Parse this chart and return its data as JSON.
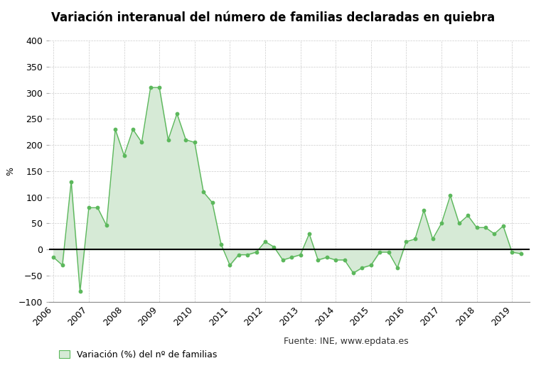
{
  "title": "Variación interanual del número de familias declaradas en quiebra",
  "ylabel": "%",
  "legend_label": "Variación (%) del nº de familias",
  "source_text": "Fuente: INE, www.epdata.es",
  "line_color": "#5cb85c",
  "fill_color": "#d6ead6",
  "marker_color": "#5cb85c",
  "background_color": "#ffffff",
  "grid_color": "#cccccc",
  "ylim": [
    -100,
    400
  ],
  "yticks": [
    -100,
    -50,
    0,
    50,
    100,
    150,
    200,
    250,
    300,
    350,
    400
  ],
  "x_labels": [
    "2006",
    "2007",
    "2008",
    "2009",
    "2010",
    "2011",
    "2012",
    "2013",
    "2014",
    "2015",
    "2016",
    "2017",
    "2018",
    "2019"
  ],
  "data": [
    {
      "t": 0,
      "v": -15
    },
    {
      "t": 1,
      "v": -30
    },
    {
      "t": 2,
      "v": 130
    },
    {
      "t": 3,
      "v": -80
    },
    {
      "t": 4,
      "v": 80
    },
    {
      "t": 5,
      "v": 80
    },
    {
      "t": 6,
      "v": 46
    },
    {
      "t": 7,
      "v": 230
    },
    {
      "t": 8,
      "v": 180
    },
    {
      "t": 9,
      "v": 230
    },
    {
      "t": 10,
      "v": 205
    },
    {
      "t": 11,
      "v": 310
    },
    {
      "t": 12,
      "v": 310
    },
    {
      "t": 13,
      "v": 210
    },
    {
      "t": 14,
      "v": 260
    },
    {
      "t": 15,
      "v": 210
    },
    {
      "t": 16,
      "v": 205
    },
    {
      "t": 17,
      "v": 110
    },
    {
      "t": 18,
      "v": 90
    },
    {
      "t": 19,
      "v": 10
    },
    {
      "t": 20,
      "v": -30
    },
    {
      "t": 21,
      "v": -10
    },
    {
      "t": 22,
      "v": -10
    },
    {
      "t": 23,
      "v": -5
    },
    {
      "t": 24,
      "v": 15
    },
    {
      "t": 25,
      "v": 5
    },
    {
      "t": 26,
      "v": -20
    },
    {
      "t": 27,
      "v": -15
    },
    {
      "t": 28,
      "v": -10
    },
    {
      "t": 29,
      "v": 30
    },
    {
      "t": 30,
      "v": -20
    },
    {
      "t": 31,
      "v": -15
    },
    {
      "t": 32,
      "v": -20
    },
    {
      "t": 33,
      "v": -20
    },
    {
      "t": 34,
      "v": -45
    },
    {
      "t": 35,
      "v": -35
    },
    {
      "t": 36,
      "v": -30
    },
    {
      "t": 37,
      "v": -5
    },
    {
      "t": 38,
      "v": -5
    },
    {
      "t": 39,
      "v": -35
    },
    {
      "t": 40,
      "v": 15
    },
    {
      "t": 41,
      "v": 20
    },
    {
      "t": 42,
      "v": 75
    },
    {
      "t": 43,
      "v": 20
    },
    {
      "t": 44,
      "v": 50
    },
    {
      "t": 45,
      "v": 103
    },
    {
      "t": 46,
      "v": 50
    },
    {
      "t": 47,
      "v": 65
    },
    {
      "t": 48,
      "v": 42
    },
    {
      "t": 49,
      "v": 42
    },
    {
      "t": 50,
      "v": 30
    },
    {
      "t": 51,
      "v": 45
    },
    {
      "t": 52,
      "v": -5
    },
    {
      "t": 53,
      "v": -8
    }
  ],
  "x_tick_positions": [
    0,
    4,
    8,
    12,
    16,
    20,
    24,
    28,
    32,
    36,
    40,
    44,
    48,
    52
  ]
}
